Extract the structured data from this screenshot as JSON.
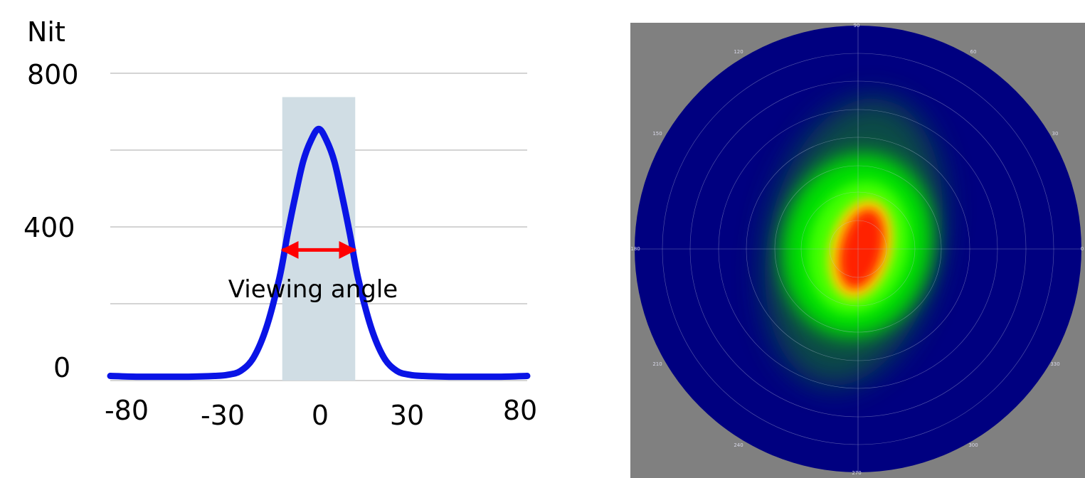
{
  "chart_data": [
    {
      "type": "line",
      "ylabel": "Nit",
      "y_ticks": [
        "800",
        "400",
        "0"
      ],
      "y_tick_values": [
        800,
        400,
        0
      ],
      "x_ticks": [
        "-80",
        "-30",
        "0",
        "30",
        "80"
      ],
      "x_tick_values": [
        -80,
        -30,
        0,
        30,
        80
      ],
      "xlim": [
        -80,
        80
      ],
      "ylim": [
        0,
        800
      ],
      "grid": true,
      "series": [
        {
          "color": "#0a14e6",
          "x": [
            -80,
            -70,
            -60,
            -50,
            -40,
            -35,
            -30,
            -25,
            -20,
            -15,
            -12,
            -9,
            -6,
            -3,
            0,
            3,
            6,
            9,
            12,
            15,
            20,
            25,
            30,
            35,
            40,
            50,
            60,
            70,
            80
          ],
          "y": [
            12,
            10,
            10,
            10,
            12,
            15,
            25,
            60,
            140,
            270,
            380,
            480,
            570,
            625,
            655,
            625,
            570,
            480,
            380,
            270,
            140,
            60,
            25,
            15,
            12,
            10,
            10,
            10,
            12
          ]
        }
      ],
      "highlight_band": {
        "x": [
          -14,
          14
        ],
        "y_top": 738,
        "color": "#d0dde4"
      },
      "annotation": {
        "text": "Viewing angle",
        "arrow_y": 340,
        "arrow_x": [
          -15,
          15
        ],
        "arrow_color": "#ff0000"
      }
    },
    {
      "type": "heatmap",
      "coordinate": "polar",
      "background": "#808080",
      "disk_color": "#000080",
      "angle_labels": [
        "90",
        "120",
        "60",
        "150",
        "30",
        "180",
        "0",
        "210",
        "330",
        "240",
        "300",
        "270"
      ],
      "colormap": [
        "#000080",
        "#00a000",
        "#00ff00",
        "#ffff00",
        "#ff0000"
      ]
    }
  ]
}
